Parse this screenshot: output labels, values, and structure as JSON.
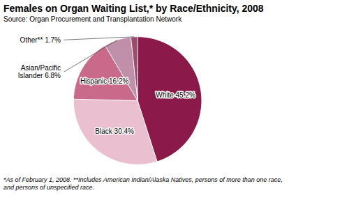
{
  "chart_data": {
    "type": "pie",
    "title": "Females on Organ Waiting List,* by Race/Ethnicity, 2008",
    "subtitle": "Source: Organ Procurement and Transplantation Network",
    "annotations": [
      "*As of February 1, 2008. **Includes American Indian/Alaska Natives, persons of more than one race,\nand persons of unspecified race."
    ],
    "categories": [
      "White 45.2%",
      "Black 30.4%",
      "Hispanic 16.2%",
      "Asian/Pacific\nIslander 6.8%",
      "Other** 1.7%"
    ],
    "values": [
      45.2,
      30.4,
      16.2,
      6.8,
      1.7
    ],
    "colors": [
      "#8B1A4A",
      "#EAC0D0",
      "#C96A8A",
      "#C090AA",
      "#A04A70"
    ]
  }
}
